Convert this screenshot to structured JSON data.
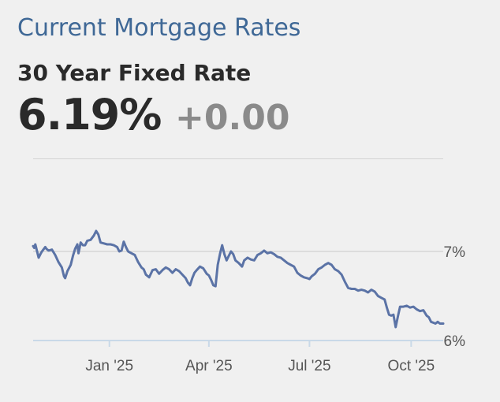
{
  "header": {
    "title": "Current Mortgage Rates"
  },
  "product": {
    "name": "30 Year Fixed Rate",
    "rate": "6.19%",
    "change": "+0.00"
  },
  "colors": {
    "title": "#3f6896",
    "line": "#5b73a6",
    "grid": "#c8c8c8",
    "axis": "#c9d9e8",
    "change": "#8a8a8a"
  },
  "chart_data": {
    "type": "line",
    "title": "",
    "xlabel": "",
    "ylabel": "",
    "ylim": [
      5.9,
      7.3
    ],
    "grid": true,
    "y_ticks": [
      {
        "value": 7,
        "label": "7%"
      },
      {
        "value": 6,
        "label": "6%"
      }
    ],
    "x_ticks": [
      {
        "date": "2025-01-01",
        "label": "Jan '25"
      },
      {
        "date": "2025-04-01",
        "label": "Apr '25"
      },
      {
        "date": "2025-07-01",
        "label": "Jul '25"
      },
      {
        "date": "2025-10-01",
        "label": "Oct '25"
      }
    ],
    "xlim": [
      "2024-10-24",
      "2025-10-30"
    ],
    "series": [
      {
        "values": [
          [
            "2024-10-24",
            7.06
          ],
          [
            "2024-10-25",
            7.04
          ],
          [
            "2024-10-26",
            7.08
          ],
          [
            "2024-10-28",
            6.98
          ],
          [
            "2024-10-29",
            6.93
          ],
          [
            "2024-10-31",
            6.98
          ],
          [
            "2024-11-01",
            7.0
          ],
          [
            "2024-11-04",
            7.05
          ],
          [
            "2024-11-05",
            7.03
          ],
          [
            "2024-11-07",
            7.01
          ],
          [
            "2024-11-10",
            7.02
          ],
          [
            "2024-11-13",
            6.96
          ],
          [
            "2024-11-16",
            6.88
          ],
          [
            "2024-11-19",
            6.82
          ],
          [
            "2024-11-21",
            6.72
          ],
          [
            "2024-11-22",
            6.7
          ],
          [
            "2024-11-24",
            6.78
          ],
          [
            "2024-11-27",
            6.85
          ],
          [
            "2024-11-29",
            6.95
          ],
          [
            "2024-12-01",
            7.03
          ],
          [
            "2024-12-03",
            7.08
          ],
          [
            "2024-12-04",
            6.98
          ],
          [
            "2024-12-06",
            7.1
          ],
          [
            "2024-12-08",
            7.07
          ],
          [
            "2024-12-10",
            7.07
          ],
          [
            "2024-12-12",
            7.12
          ],
          [
            "2024-12-15",
            7.13
          ],
          [
            "2024-12-18",
            7.18
          ],
          [
            "2024-12-20",
            7.23
          ],
          [
            "2024-12-22",
            7.19
          ],
          [
            "2024-12-24",
            7.1
          ],
          [
            "2024-12-27",
            7.09
          ],
          [
            "2024-12-30",
            7.08
          ],
          [
            "2025-01-02",
            7.08
          ],
          [
            "2025-01-05",
            7.07
          ],
          [
            "2025-01-08",
            7.05
          ],
          [
            "2025-01-10",
            7.0
          ],
          [
            "2025-01-12",
            7.01
          ],
          [
            "2025-01-14",
            7.11
          ],
          [
            "2025-01-16",
            7.05
          ],
          [
            "2025-01-18",
            7.0
          ],
          [
            "2025-01-21",
            6.98
          ],
          [
            "2025-01-24",
            6.96
          ],
          [
            "2025-01-27",
            6.88
          ],
          [
            "2025-01-30",
            6.82
          ],
          [
            "2025-02-01",
            6.8
          ],
          [
            "2025-02-03",
            6.74
          ],
          [
            "2025-02-06",
            6.71
          ],
          [
            "2025-02-09",
            6.79
          ],
          [
            "2025-02-12",
            6.8
          ],
          [
            "2025-02-15",
            6.75
          ],
          [
            "2025-02-18",
            6.79
          ],
          [
            "2025-02-21",
            6.82
          ],
          [
            "2025-02-24",
            6.8
          ],
          [
            "2025-02-27",
            6.76
          ],
          [
            "2025-03-02",
            6.8
          ],
          [
            "2025-03-05",
            6.78
          ],
          [
            "2025-03-08",
            6.74
          ],
          [
            "2025-03-11",
            6.7
          ],
          [
            "2025-03-13",
            6.65
          ],
          [
            "2025-03-15",
            6.62
          ],
          [
            "2025-03-17",
            6.7
          ],
          [
            "2025-03-19",
            6.76
          ],
          [
            "2025-03-21",
            6.79
          ],
          [
            "2025-03-24",
            6.83
          ],
          [
            "2025-03-27",
            6.81
          ],
          [
            "2025-03-30",
            6.75
          ],
          [
            "2025-04-01",
            6.73
          ],
          [
            "2025-04-03",
            6.68
          ],
          [
            "2025-04-05",
            6.62
          ],
          [
            "2025-04-07",
            6.61
          ],
          [
            "2025-04-09",
            6.85
          ],
          [
            "2025-04-11",
            6.97
          ],
          [
            "2025-04-13",
            7.07
          ],
          [
            "2025-04-15",
            6.97
          ],
          [
            "2025-04-17",
            6.9
          ],
          [
            "2025-04-19",
            6.95
          ],
          [
            "2025-04-21",
            7.0
          ],
          [
            "2025-04-23",
            6.97
          ],
          [
            "2025-04-25",
            6.9
          ],
          [
            "2025-04-28",
            6.87
          ],
          [
            "2025-05-01",
            6.83
          ],
          [
            "2025-05-03",
            6.9
          ],
          [
            "2025-05-06",
            6.93
          ],
          [
            "2025-05-09",
            6.91
          ],
          [
            "2025-05-12",
            6.9
          ],
          [
            "2025-05-15",
            6.96
          ],
          [
            "2025-05-18",
            6.98
          ],
          [
            "2025-05-21",
            7.01
          ],
          [
            "2025-05-24",
            6.98
          ],
          [
            "2025-05-27",
            6.99
          ],
          [
            "2025-05-30",
            6.97
          ],
          [
            "2025-06-02",
            6.94
          ],
          [
            "2025-06-05",
            6.93
          ],
          [
            "2025-06-08",
            6.9
          ],
          [
            "2025-06-11",
            6.87
          ],
          [
            "2025-06-14",
            6.85
          ],
          [
            "2025-06-17",
            6.83
          ],
          [
            "2025-06-20",
            6.76
          ],
          [
            "2025-06-23",
            6.73
          ],
          [
            "2025-06-26",
            6.71
          ],
          [
            "2025-06-29",
            6.7
          ],
          [
            "2025-07-01",
            6.69
          ],
          [
            "2025-07-03",
            6.72
          ],
          [
            "2025-07-06",
            6.75
          ],
          [
            "2025-07-09",
            6.8
          ],
          [
            "2025-07-12",
            6.82
          ],
          [
            "2025-07-15",
            6.85
          ],
          [
            "2025-07-18",
            6.87
          ],
          [
            "2025-07-21",
            6.85
          ],
          [
            "2025-07-24",
            6.8
          ],
          [
            "2025-07-27",
            6.78
          ],
          [
            "2025-07-30",
            6.74
          ],
          [
            "2025-08-02",
            6.66
          ],
          [
            "2025-08-05",
            6.59
          ],
          [
            "2025-08-08",
            6.58
          ],
          [
            "2025-08-11",
            6.58
          ],
          [
            "2025-08-14",
            6.56
          ],
          [
            "2025-08-17",
            6.57
          ],
          [
            "2025-08-20",
            6.56
          ],
          [
            "2025-08-23",
            6.54
          ],
          [
            "2025-08-26",
            6.57
          ],
          [
            "2025-08-29",
            6.55
          ],
          [
            "2025-09-01",
            6.5
          ],
          [
            "2025-09-04",
            6.48
          ],
          [
            "2025-09-07",
            6.46
          ],
          [
            "2025-09-09",
            6.37
          ],
          [
            "2025-09-11",
            6.29
          ],
          [
            "2025-09-13",
            6.28
          ],
          [
            "2025-09-15",
            6.29
          ],
          [
            "2025-09-17",
            6.15
          ],
          [
            "2025-09-19",
            6.27
          ],
          [
            "2025-09-21",
            6.38
          ],
          [
            "2025-09-24",
            6.38
          ],
          [
            "2025-09-27",
            6.39
          ],
          [
            "2025-09-30",
            6.37
          ],
          [
            "2025-10-03",
            6.38
          ],
          [
            "2025-10-06",
            6.35
          ],
          [
            "2025-10-09",
            6.33
          ],
          [
            "2025-10-12",
            6.34
          ],
          [
            "2025-10-15",
            6.28
          ],
          [
            "2025-10-17",
            6.26
          ],
          [
            "2025-10-19",
            6.21
          ],
          [
            "2025-10-21",
            6.2
          ],
          [
            "2025-10-23",
            6.19
          ],
          [
            "2025-10-25",
            6.21
          ],
          [
            "2025-10-27",
            6.19
          ],
          [
            "2025-10-30",
            6.19
          ]
        ]
      }
    ]
  }
}
